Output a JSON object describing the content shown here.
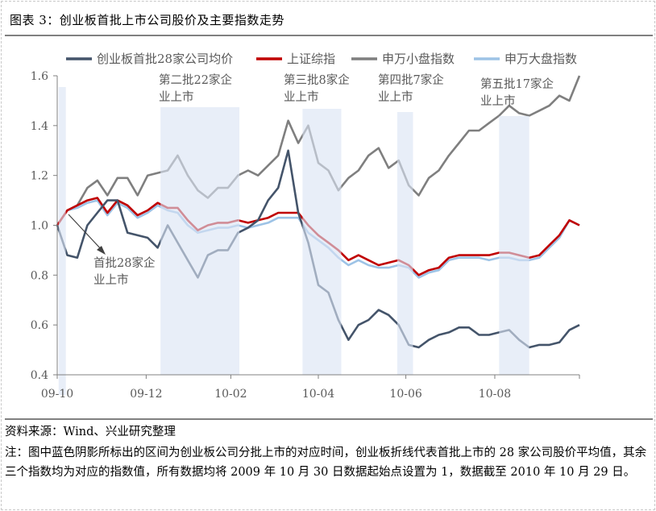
{
  "header": {
    "title": "图表 3：创业板首批上市公司股价及主要指数走势"
  },
  "footer": {
    "source": "资料来源：Wind、兴业研究整理",
    "note": "注：图中蓝色阴影所标出的区间为创业板公司分批上市的对应时间，创业板折线代表首批上市的 28 家公司股价平均值，其余三个指数均为对应的指数值，所有数据均将 2009 年 10 月 30 日数据起始点设置为 1，数据截至 2010 年 10 月 29 日。"
  },
  "chart_data": {
    "type": "line",
    "title": "",
    "xlabel": "",
    "ylabel": "",
    "ylim": [
      0.4,
      1.6
    ],
    "yticks": [
      "0.4",
      "0.6",
      "0.8",
      "1.0",
      "1.2",
      "1.4",
      "1.6"
    ],
    "xticks": [
      {
        "date": "2009-10-30",
        "label": "09-10"
      },
      {
        "date": "2009-12-31",
        "label": "09-12"
      },
      {
        "date": "2010-02-28",
        "label": "10-02"
      },
      {
        "date": "2010-04-30",
        "label": "10-04"
      },
      {
        "date": "2010-06-30",
        "label": "10-06"
      },
      {
        "date": "2010-08-31",
        "label": "10-08"
      },
      {
        "date": "2010-10-29",
        "label": ""
      }
    ],
    "xlim": [
      "2009-10-30",
      "2010-10-29"
    ],
    "grid": false,
    "legend": "top",
    "x": [
      "2009-10-30",
      "2009-11-06",
      "2009-11-13",
      "2009-11-20",
      "2009-11-27",
      "2009-12-04",
      "2009-12-11",
      "2009-12-18",
      "2009-12-25",
      "2010-01-01",
      "2010-01-08",
      "2010-01-15",
      "2010-01-22",
      "2010-01-29",
      "2010-02-05",
      "2010-02-12",
      "2010-02-19",
      "2010-02-26",
      "2010-03-05",
      "2010-03-12",
      "2010-03-19",
      "2010-03-26",
      "2010-04-02",
      "2010-04-09",
      "2010-04-16",
      "2010-04-23",
      "2010-04-30",
      "2010-05-07",
      "2010-05-14",
      "2010-05-21",
      "2010-05-28",
      "2010-06-04",
      "2010-06-11",
      "2010-06-18",
      "2010-06-25",
      "2010-07-02",
      "2010-07-09",
      "2010-07-16",
      "2010-07-23",
      "2010-07-30",
      "2010-08-06",
      "2010-08-13",
      "2010-08-20",
      "2010-08-27",
      "2010-09-03",
      "2010-09-10",
      "2010-09-17",
      "2010-09-24",
      "2010-10-01",
      "2010-10-08",
      "2010-10-15",
      "2010-10-22",
      "2010-10-29"
    ],
    "series": [
      {
        "name": "申万小盘指数",
        "color": "#7f7f7f",
        "values": [
          1.0,
          1.06,
          1.08,
          1.15,
          1.18,
          1.12,
          1.19,
          1.19,
          1.12,
          1.2,
          1.21,
          1.22,
          1.28,
          1.2,
          1.14,
          1.11,
          1.15,
          1.15,
          1.2,
          1.22,
          1.2,
          1.24,
          1.28,
          1.42,
          1.33,
          1.4,
          1.25,
          1.22,
          1.14,
          1.19,
          1.22,
          1.28,
          1.31,
          1.23,
          1.26,
          1.16,
          1.12,
          1.19,
          1.22,
          1.28,
          1.33,
          1.38,
          1.38,
          1.41,
          1.44,
          1.48,
          1.45,
          1.44,
          1.46,
          1.48,
          1.52,
          1.5,
          1.6
        ]
      },
      {
        "name": "申万大盘指数",
        "color": "#9dc3e6",
        "values": [
          1.0,
          1.06,
          1.07,
          1.09,
          1.1,
          1.04,
          1.09,
          1.07,
          1.03,
          1.05,
          1.08,
          1.06,
          1.05,
          1.0,
          0.97,
          0.98,
          0.99,
          0.99,
          1.0,
          0.99,
          1.0,
          1.01,
          1.03,
          1.03,
          1.03,
          0.97,
          0.94,
          0.91,
          0.87,
          0.84,
          0.86,
          0.84,
          0.83,
          0.83,
          0.84,
          0.83,
          0.79,
          0.81,
          0.82,
          0.86,
          0.87,
          0.87,
          0.87,
          0.86,
          0.87,
          0.87,
          0.86,
          0.86,
          0.87,
          0.91,
          0.95,
          1.02,
          1.0
        ]
      },
      {
        "name": "上证综指",
        "color": "#c00000",
        "values": [
          1.0,
          1.06,
          1.08,
          1.1,
          1.11,
          1.05,
          1.1,
          1.08,
          1.04,
          1.06,
          1.09,
          1.07,
          1.07,
          1.02,
          0.98,
          1.0,
          1.01,
          1.01,
          1.02,
          1.01,
          1.02,
          1.03,
          1.05,
          1.05,
          1.05,
          1.0,
          0.96,
          0.93,
          0.9,
          0.86,
          0.88,
          0.86,
          0.84,
          0.85,
          0.86,
          0.84,
          0.8,
          0.82,
          0.83,
          0.87,
          0.88,
          0.88,
          0.88,
          0.88,
          0.89,
          0.89,
          0.88,
          0.87,
          0.88,
          0.92,
          0.96,
          1.02,
          1.0
        ]
      },
      {
        "name": "创业板首批28家公司均价",
        "color": "#44546a",
        "values": [
          1.0,
          0.88,
          0.87,
          1.0,
          1.05,
          1.1,
          1.1,
          0.97,
          0.96,
          0.95,
          0.91,
          1.0,
          0.93,
          0.86,
          0.79,
          0.88,
          0.9,
          0.9,
          0.97,
          0.99,
          1.02,
          1.1,
          1.15,
          1.3,
          1.05,
          0.93,
          0.76,
          0.73,
          0.62,
          0.54,
          0.6,
          0.62,
          0.66,
          0.64,
          0.6,
          0.52,
          0.51,
          0.54,
          0.56,
          0.57,
          0.59,
          0.59,
          0.56,
          0.56,
          0.57,
          0.58,
          0.54,
          0.51,
          0.52,
          0.52,
          0.53,
          0.58,
          0.6
        ]
      }
    ],
    "legend_order": [
      "创业板首批28家公司均价",
      "上证综指",
      "申万小盘指数",
      "申万大盘指数"
    ],
    "shaded_color": "#dae3f3",
    "shaded_periods": [
      {
        "start": "2009-10-31",
        "end": "2009-11-05",
        "label": [
          "首批28家企",
          "业上市"
        ]
      },
      {
        "start": "2010-01-10",
        "end": "2010-03-06",
        "label": [
          "第二批22家企",
          "业上市"
        ]
      },
      {
        "start": "2010-04-19",
        "end": "2010-05-16",
        "label": [
          "第三批8家企",
          "业上市"
        ]
      },
      {
        "start": "2010-06-24",
        "end": "2010-07-05",
        "label": [
          "第四批7家企",
          "业上市"
        ]
      },
      {
        "start": "2010-09-03",
        "end": "2010-09-24",
        "label": [
          "第五批17家企",
          "业上市"
        ]
      }
    ]
  }
}
